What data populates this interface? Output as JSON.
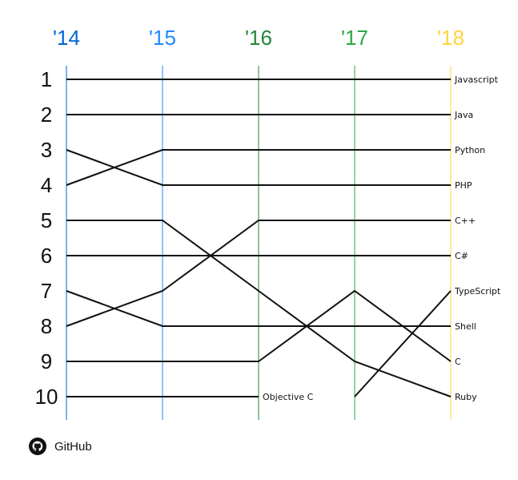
{
  "chart_data": {
    "type": "bump",
    "years": [
      {
        "label": "'14",
        "color": "#0366d6"
      },
      {
        "label": "'15",
        "color": "#2188ff"
      },
      {
        "label": "'16",
        "color": "#22863a"
      },
      {
        "label": "'17",
        "color": "#28a745"
      },
      {
        "label": "'18",
        "color": "#ffd33d"
      }
    ],
    "ranks": [
      "1",
      "2",
      "3",
      "4",
      "5",
      "6",
      "7",
      "8",
      "9",
      "10"
    ],
    "series": [
      {
        "name": "Javascript",
        "ranks": [
          1,
          1,
          1,
          1,
          1
        ]
      },
      {
        "name": "Java",
        "ranks": [
          2,
          2,
          2,
          2,
          2
        ]
      },
      {
        "name": "Python",
        "ranks": [
          4,
          3,
          3,
          3,
          3
        ]
      },
      {
        "name": "PHP",
        "ranks": [
          3,
          4,
          4,
          4,
          4
        ]
      },
      {
        "name": "C++",
        "ranks": [
          8,
          7,
          5,
          5,
          5
        ]
      },
      {
        "name": "C#",
        "ranks": [
          6,
          6,
          6,
          6,
          6
        ]
      },
      {
        "name": "TypeScript",
        "ranks": [
          null,
          null,
          null,
          10,
          7
        ]
      },
      {
        "name": "Shell",
        "ranks": [
          7,
          8,
          8,
          8,
          8
        ]
      },
      {
        "name": "C",
        "ranks": [
          9,
          9,
          9,
          7,
          9
        ]
      },
      {
        "name": "Ruby",
        "ranks": [
          5,
          5,
          7,
          9,
          10
        ]
      },
      {
        "name": "Objective C",
        "ranks": [
          10,
          10,
          10,
          null,
          null
        ]
      }
    ],
    "line_color": "#111111"
  },
  "footer": {
    "brand": "GitHub",
    "logo_icon": "github-octocat-icon"
  }
}
